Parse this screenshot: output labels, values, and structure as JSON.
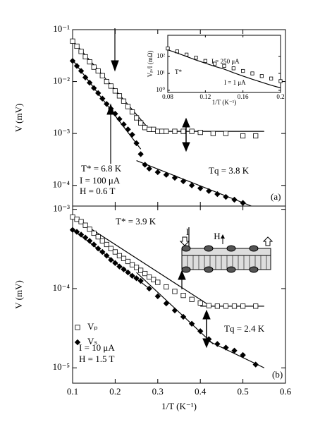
{
  "chart_data": [
    {
      "type": "scatter",
      "panel": "(a)",
      "ylabel": "V (mV)",
      "yscale": "log",
      "xlim": [
        0.1,
        0.6
      ],
      "xticks": [
        0.1,
        0.2,
        0.3,
        0.4,
        0.5,
        0.6
      ],
      "show_xtick_labels": false,
      "ylim": [
        4e-05,
        0.1
      ],
      "yticks": [
        {
          "value": 0.1,
          "label": "10⁻¹"
        },
        {
          "value": 0.01,
          "label": "10⁻²"
        },
        {
          "value": 0.001,
          "label": "10⁻³"
        },
        {
          "value": 0.0001,
          "label": "10⁻⁴"
        }
      ],
      "annotations": [
        "T* = 6.8 K",
        "Tq = 3.8 K",
        "I = 100 μA",
        "H = 0.6 T"
      ],
      "series": [
        {
          "name": "Vp",
          "marker": "square",
          "color": "#000",
          "x": [
            0.1,
            0.11,
            0.12,
            0.13,
            0.14,
            0.15,
            0.16,
            0.17,
            0.18,
            0.19,
            0.2,
            0.21,
            0.22,
            0.23,
            0.24,
            0.25,
            0.26,
            0.27,
            0.28,
            0.29,
            0.3,
            0.31,
            0.32,
            0.34,
            0.36,
            0.38,
            0.4,
            0.43,
            0.46,
            0.5,
            0.53
          ],
          "values": [
            0.06,
            0.048,
            0.038,
            0.03,
            0.024,
            0.019,
            0.016,
            0.013,
            0.01,
            0.0082,
            0.0066,
            0.0053,
            0.0042,
            0.0033,
            0.0026,
            0.002,
            0.0016,
            0.0013,
            0.0012,
            0.0012,
            0.0011,
            0.0011,
            0.0011,
            0.0011,
            0.0011,
            0.0011,
            0.00105,
            0.001,
            0.001,
            0.0009,
            0.0009
          ]
        },
        {
          "name": "Vs",
          "marker": "diamond",
          "color": "#000",
          "x": [
            0.1,
            0.11,
            0.12,
            0.13,
            0.14,
            0.15,
            0.16,
            0.17,
            0.18,
            0.19,
            0.2,
            0.21,
            0.22,
            0.23,
            0.24,
            0.25,
            0.26,
            0.27,
            0.28,
            0.3,
            0.32,
            0.34,
            0.36,
            0.38,
            0.4,
            0.42,
            0.44,
            0.46,
            0.48,
            0.5
          ],
          "values": [
            0.025,
            0.02,
            0.016,
            0.012,
            0.0095,
            0.0075,
            0.006,
            0.0047,
            0.0037,
            0.003,
            0.0024,
            0.0019,
            0.0015,
            0.0012,
            0.00095,
            0.00065,
            0.0004,
            0.00025,
            0.00021,
            0.00018,
            0.00016,
            0.00014,
            0.00012,
            0.0001,
            8.8e-05,
            7.8e-05,
            6.8e-05,
            6e-05,
            5.3e-05,
            4.6e-05
          ]
        }
      ],
      "fits": [
        [
          [
            0.1,
            0.062
          ],
          [
            0.28,
            0.0012
          ]
        ],
        [
          [
            0.28,
            0.0011
          ],
          [
            0.55,
            0.0011
          ]
        ],
        [
          [
            0.1,
            0.026
          ],
          [
            0.26,
            0.0005
          ]
        ],
        [
          [
            0.25,
            0.0003
          ],
          [
            0.52,
            4e-05
          ]
        ]
      ]
    },
    {
      "type": "scatter",
      "panel": "(b)",
      "ylabel": "V (mV)",
      "xlabel": "1/T (K⁻¹)",
      "yscale": "log",
      "xlim": [
        0.1,
        0.6
      ],
      "xticks": [
        0.1,
        0.2,
        0.3,
        0.4,
        0.5,
        0.6
      ],
      "show_xtick_labels": true,
      "ylim": [
        6.4e-06,
        0.0011
      ],
      "yticks": [
        {
          "value": 0.001,
          "label": "10⁻³"
        },
        {
          "value": 0.0001,
          "label": "10⁻⁴"
        },
        {
          "value": 1e-05,
          "label": "10⁻⁵"
        }
      ],
      "annotations": [
        "T* = 3.9 K",
        "Tq = 2.4 K",
        "I = 10 μA",
        "H = 1.5 T",
        "I",
        "H"
      ],
      "series": [
        {
          "name": "Vₚ",
          "marker": "square",
          "color": "#000",
          "x": [
            0.1,
            0.11,
            0.12,
            0.13,
            0.14,
            0.15,
            0.16,
            0.17,
            0.18,
            0.19,
            0.2,
            0.21,
            0.22,
            0.23,
            0.24,
            0.25,
            0.26,
            0.27,
            0.28,
            0.29,
            0.3,
            0.32,
            0.34,
            0.36,
            0.38,
            0.4,
            0.42,
            0.44,
            0.46,
            0.48,
            0.5,
            0.53
          ],
          "values": [
            0.0008,
            0.00075,
            0.0007,
            0.00063,
            0.00056,
            0.0005,
            0.00045,
            0.0004,
            0.00036,
            0.00032,
            0.00029,
            0.00026,
            0.00024,
            0.00022,
            0.0002,
            0.000185,
            0.00017,
            0.000155,
            0.00014,
            0.00013,
            0.00012,
            0.000105,
            9.2e-05,
            8.2e-05,
            7.3e-05,
            6.6e-05,
            6.1e-05,
            6e-05,
            6e-05,
            6e-05,
            6e-05,
            6e-05
          ]
        },
        {
          "name": "Vₛ",
          "marker": "diamond",
          "color": "#000",
          "x": [
            0.1,
            0.11,
            0.12,
            0.13,
            0.14,
            0.15,
            0.16,
            0.17,
            0.18,
            0.19,
            0.2,
            0.21,
            0.22,
            0.23,
            0.24,
            0.25,
            0.26,
            0.28,
            0.3,
            0.32,
            0.34,
            0.36,
            0.38,
            0.4,
            0.42,
            0.44,
            0.46,
            0.48,
            0.5,
            0.53
          ],
          "values": [
            0.00055,
            0.00052,
            0.00048,
            0.00044,
            0.0004,
            0.00036,
            0.00032,
            0.00029,
            0.00026,
            0.00023,
            0.00021,
            0.00019,
            0.000175,
            0.00016,
            0.000145,
            0.000135,
            0.000125,
            0.0001,
            8e-05,
            6.5e-05,
            5.3e-05,
            4.4e-05,
            3.6e-05,
            2.9e-05,
            2.3e-05,
            2e-05,
            1.8e-05,
            1.65e-05,
            1.45e-05,
            1.1e-05
          ]
        }
      ],
      "fits": [
        [
          [
            0.1,
            0.0008
          ],
          [
            0.42,
            6.2e-05
          ]
        ],
        [
          [
            0.4,
            6e-05
          ],
          [
            0.55,
            6e-05
          ]
        ],
        [
          [
            0.1,
            0.00056
          ],
          [
            0.28,
            0.0001
          ]
        ],
        [
          [
            0.25,
            0.00016
          ],
          [
            0.43,
            2e-05
          ]
        ],
        [
          [
            0.41,
            2.3e-05
          ],
          [
            0.55,
            1e-05
          ]
        ]
      ]
    },
    {
      "type": "scatter",
      "ylabel": "Vₚ/I (mΩ)",
      "xlabel": "1/T (K⁻¹)",
      "yscale": "log",
      "xlim": [
        0.08,
        0.2
      ],
      "xticks": [
        0.08,
        0.12,
        0.16,
        0.2
      ],
      "show_xtick_labels": true,
      "ylim": [
        0.75,
        1800
      ],
      "yticks": [
        {
          "value": 1,
          "label": "10⁰"
        },
        {
          "value": 10,
          "label": "10¹"
        },
        {
          "value": 100,
          "label": "10²"
        }
      ],
      "annotations": [
        "I = 250 μA",
        "T*",
        "I = 1 μA"
      ],
      "series": [
        {
          "name": "I = 250 μA",
          "marker": "square",
          "color": "#000",
          "x": [
            0.08,
            0.09,
            0.1,
            0.11,
            0.12,
            0.13,
            0.14,
            0.15,
            0.16,
            0.17,
            0.18,
            0.19,
            0.2
          ],
          "values": [
            300,
            200,
            130,
            85,
            55,
            38,
            28,
            20,
            14,
            10,
            7,
            5,
            3.5
          ]
        },
        {
          "name": "I = 1 μA",
          "marker": "line",
          "color": "#000",
          "x": [
            0.08,
            0.09,
            0.1,
            0.11,
            0.12,
            0.13,
            0.14,
            0.15,
            0.16,
            0.17,
            0.18,
            0.19,
            0.2
          ],
          "values": [
            250,
            160,
            100,
            62,
            40,
            26,
            18,
            11,
            7,
            4.5,
            3,
            2,
            1.4
          ]
        }
      ],
      "fits": []
    }
  ]
}
